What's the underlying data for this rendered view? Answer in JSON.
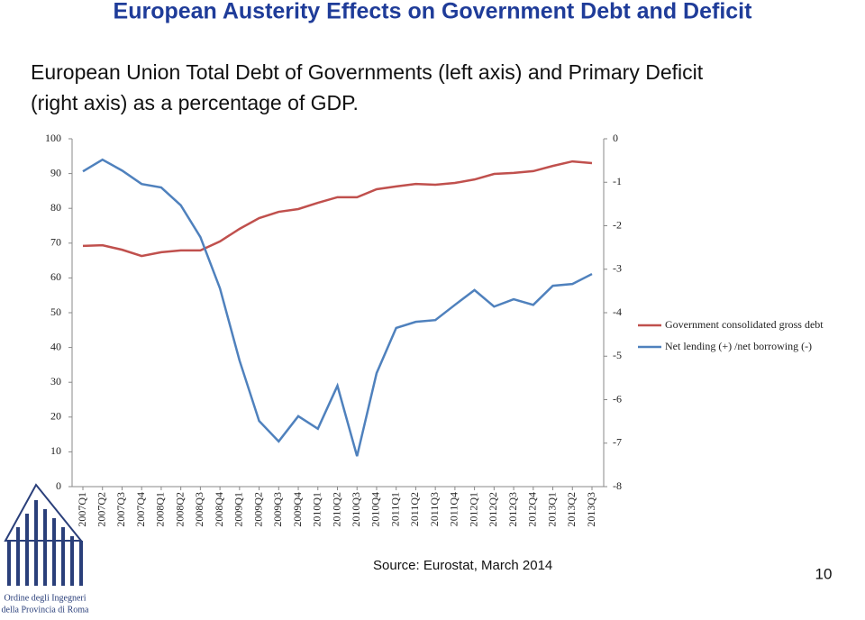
{
  "header": {
    "title": "European Austerity Effects on Government Debt and Deficit",
    "subtitle_line1": "European Union Total Debt of Governments (left axis) and Primary Deficit",
    "subtitle_line2": "(right axis) as a percentage of GDP."
  },
  "chart_data": {
    "type": "line",
    "categories": [
      "2007Q1",
      "2007Q2",
      "2007Q3",
      "2007Q4",
      "2008Q1",
      "2008Q2",
      "2008Q3",
      "2008Q4",
      "2009Q1",
      "2009Q2",
      "2009Q3",
      "2009Q4",
      "2010Q1",
      "2010Q2",
      "2010Q3",
      "2010Q4",
      "2011Q1",
      "2011Q2",
      "2011Q3",
      "2011Q4",
      "2012Q1",
      "2012Q2",
      "2012Q3",
      "2012Q4",
      "2013Q1",
      "2013Q2",
      "2013Q3"
    ],
    "series": [
      {
        "name": "Government consolidated gross debt",
        "color": "#c0504d",
        "values": [
          69.2,
          69.4,
          68.1,
          66.3,
          67.4,
          67.9,
          67.9,
          70.5,
          74.1,
          77.2,
          79.0,
          79.8,
          81.6,
          83.2,
          83.2,
          85.5,
          86.3,
          87.0,
          86.8,
          87.3,
          88.3,
          89.9,
          90.2,
          90.7,
          92.2,
          93.5,
          93.0
        ]
      },
      {
        "name": "Net lending (+) /net borrowing (-)",
        "color": "#4f81bd",
        "axis": "y2",
        "values": [
          -0.75,
          -0.48,
          -0.73,
          -1.04,
          -1.12,
          -1.53,
          -2.26,
          -3.44,
          -5.1,
          -6.49,
          -6.96,
          -6.38,
          -6.67,
          -5.68,
          -7.3,
          -5.39,
          -4.35,
          -4.21,
          -4.17,
          -3.82,
          -3.48,
          -3.86,
          -3.69,
          -3.82,
          -3.38,
          -3.34,
          -3.11
        ]
      }
    ],
    "ylim": [
      0,
      100
    ],
    "yticks": [
      0,
      10,
      20,
      30,
      40,
      50,
      60,
      70,
      80,
      90,
      100
    ],
    "y2lim": [
      -8,
      0
    ],
    "y2ticks": [
      -8,
      -7,
      -6,
      -5,
      -4,
      -3,
      -2,
      -1,
      0
    ]
  },
  "footer": {
    "source": "Source: Eurostat, March 2014",
    "page_number": "10",
    "logo_line1": "Ordine degli Ingegneri",
    "logo_line2": "della Provincia di Roma"
  }
}
